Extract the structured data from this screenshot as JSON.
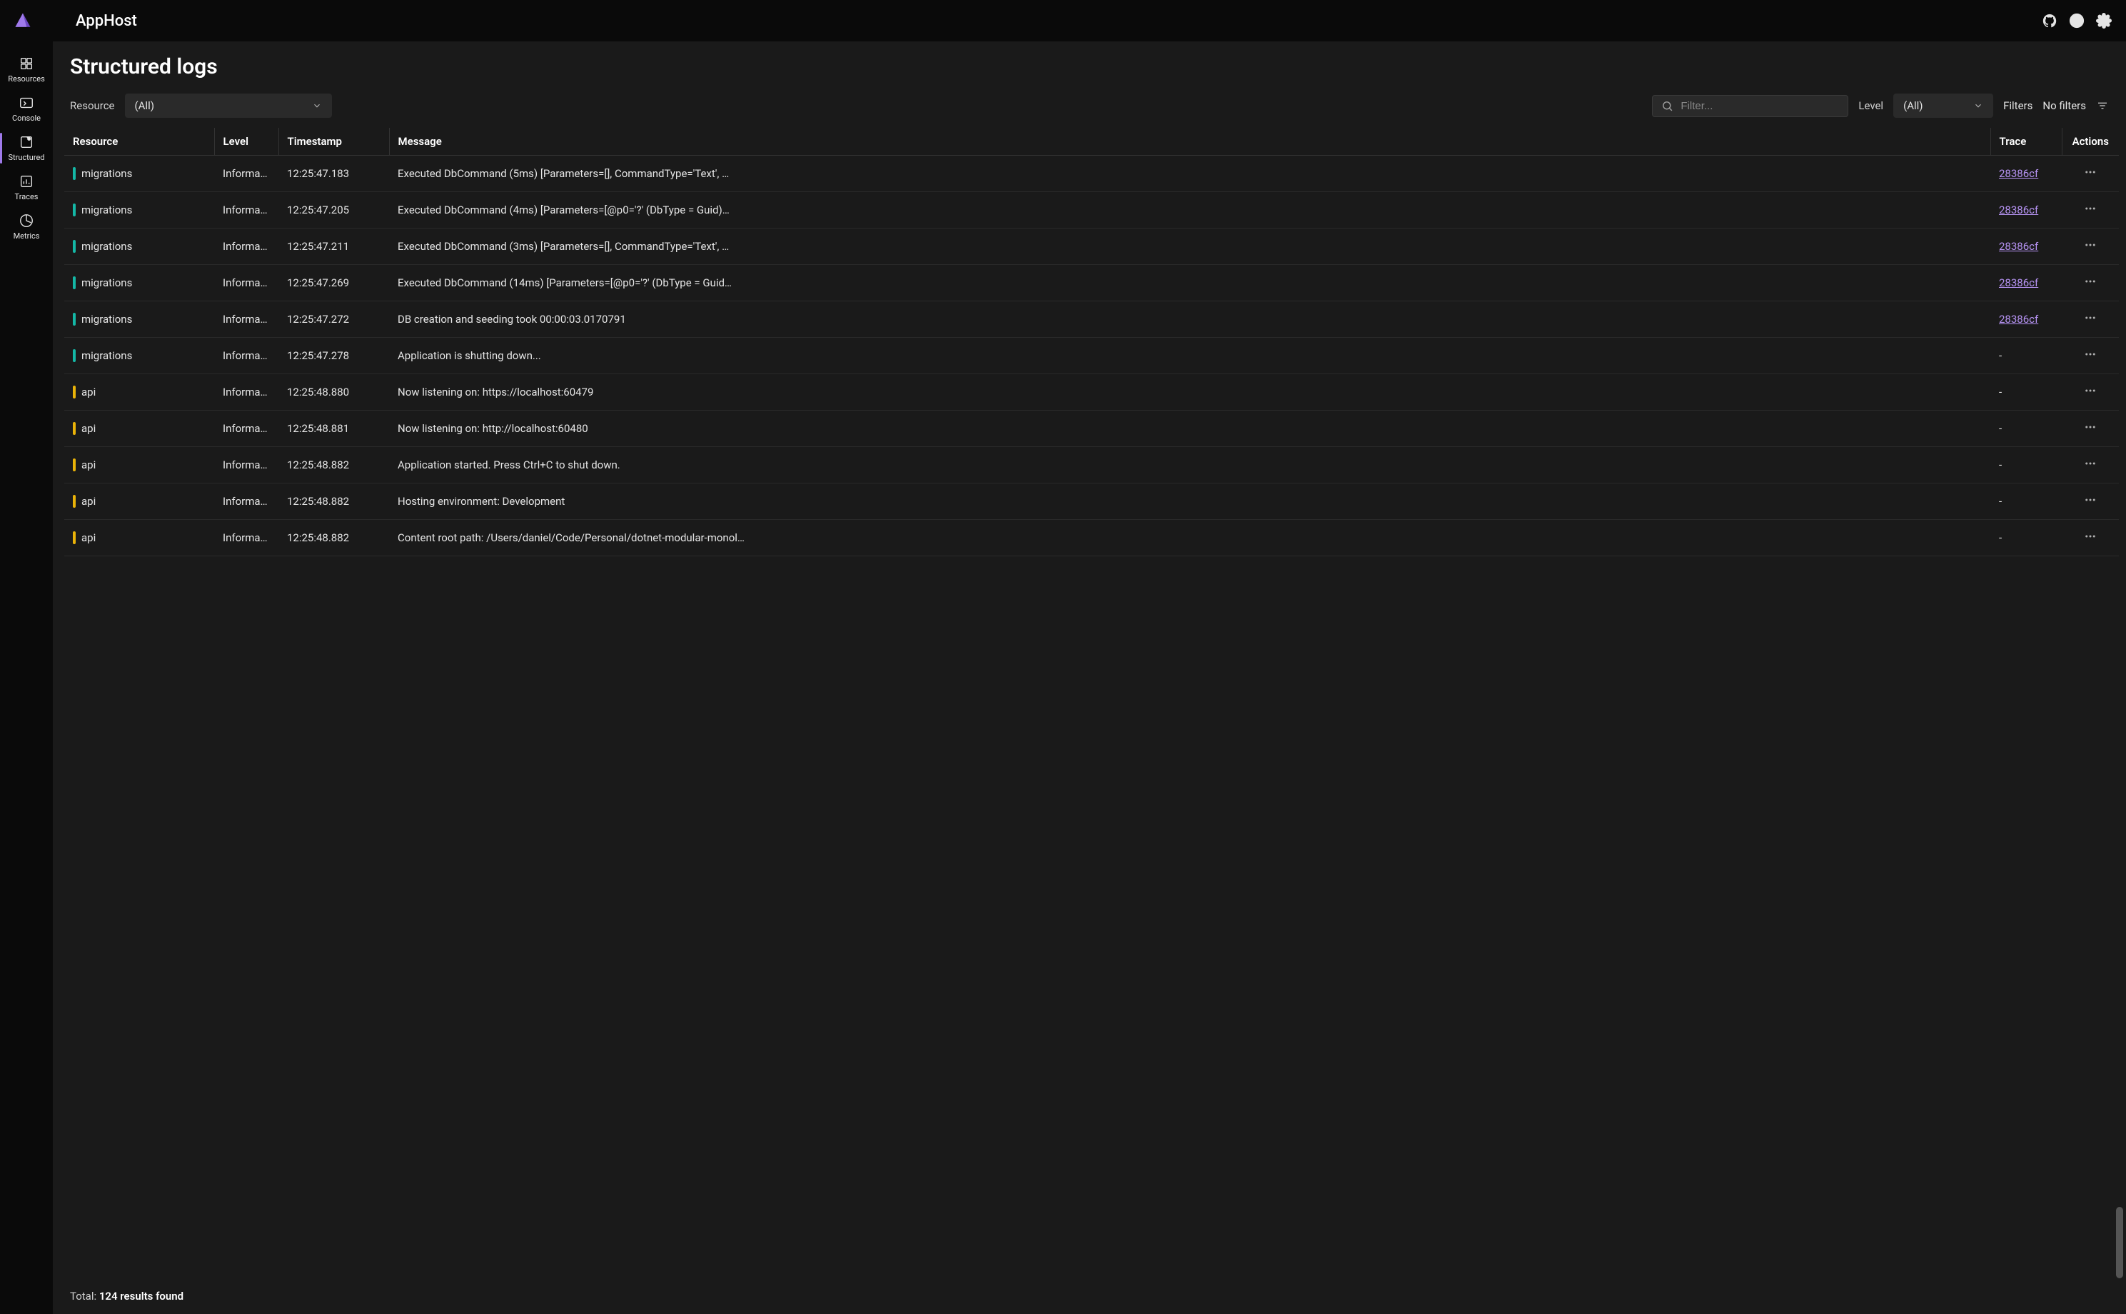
{
  "header": {
    "app_title": "AppHost"
  },
  "sidebar": {
    "items": [
      {
        "label": "Resources",
        "icon": "grid"
      },
      {
        "label": "Console",
        "icon": "terminal"
      },
      {
        "label": "Structured",
        "icon": "layers",
        "active": true
      },
      {
        "label": "Traces",
        "icon": "traces"
      },
      {
        "label": "Metrics",
        "icon": "chart"
      }
    ]
  },
  "page": {
    "title": "Structured logs"
  },
  "toolbar": {
    "resource_label": "Resource",
    "resource_value": "(All)",
    "filter_placeholder": "Filter...",
    "level_label": "Level",
    "level_value": "(All)",
    "filters_label": "Filters",
    "no_filters_label": "No filters"
  },
  "table": {
    "columns": [
      "Resource",
      "Level",
      "Timestamp",
      "Message",
      "Trace",
      "Actions"
    ],
    "resource_colors": {
      "migrations": "#14b8a6",
      "api": "#eab308"
    },
    "trace_link_color": "#b794f4",
    "rows": [
      {
        "resource": "migrations",
        "level": "Informati…",
        "timestamp": "12:25:47.183",
        "message": "Executed DbCommand (5ms) [Parameters=[], CommandType='Text', …",
        "trace": "28386cf"
      },
      {
        "resource": "migrations",
        "level": "Informati…",
        "timestamp": "12:25:47.205",
        "message": "Executed DbCommand (4ms) [Parameters=[@p0='?' (DbType = Guid)…",
        "trace": "28386cf"
      },
      {
        "resource": "migrations",
        "level": "Informati…",
        "timestamp": "12:25:47.211",
        "message": "Executed DbCommand (3ms) [Parameters=[], CommandType='Text', …",
        "trace": "28386cf"
      },
      {
        "resource": "migrations",
        "level": "Informati…",
        "timestamp": "12:25:47.269",
        "message": "Executed DbCommand (14ms) [Parameters=[@p0='?' (DbType = Guid…",
        "trace": "28386cf"
      },
      {
        "resource": "migrations",
        "level": "Informati…",
        "timestamp": "12:25:47.272",
        "message": "DB creation and seeding took 00:00:03.0170791",
        "trace": "28386cf"
      },
      {
        "resource": "migrations",
        "level": "Informati…",
        "timestamp": "12:25:47.278",
        "message": "Application is shutting down...",
        "trace": "-"
      },
      {
        "resource": "api",
        "level": "Informati…",
        "timestamp": "12:25:48.880",
        "message": "Now listening on: https://localhost:60479",
        "trace": "-"
      },
      {
        "resource": "api",
        "level": "Informati…",
        "timestamp": "12:25:48.881",
        "message": "Now listening on: http://localhost:60480",
        "trace": "-"
      },
      {
        "resource": "api",
        "level": "Informati…",
        "timestamp": "12:25:48.882",
        "message": "Application started. Press Ctrl+C to shut down.",
        "trace": "-"
      },
      {
        "resource": "api",
        "level": "Informati…",
        "timestamp": "12:25:48.882",
        "message": "Hosting environment: Development",
        "trace": "-"
      },
      {
        "resource": "api",
        "level": "Informati…",
        "timestamp": "12:25:48.882",
        "message": "Content root path: /Users/daniel/Code/Personal/dotnet-modular-monol…",
        "trace": "-"
      }
    ]
  },
  "footer": {
    "total_prefix": "Total: ",
    "total_count": "124 results found"
  }
}
